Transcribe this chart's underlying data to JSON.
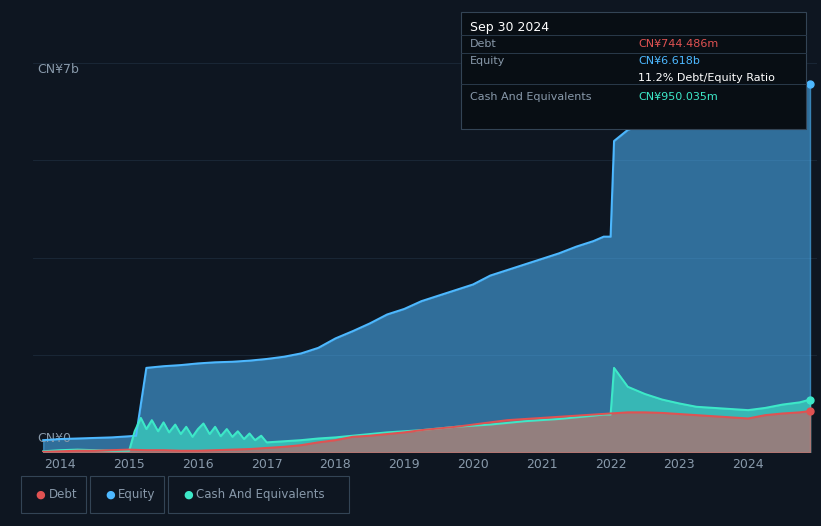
{
  "bg_color": "#0e1621",
  "plot_bg_color": "#0e1621",
  "ylabel_top": "CN¥7b",
  "ylabel_bottom": "CN¥0",
  "debt_color": "#e05252",
  "equity_color": "#4db8ff",
  "cash_color": "#3de8c8",
  "grid_color": "#1c2a3a",
  "text_color": "#8899aa",
  "box_bg": "#080e14",
  "box_border": "#2a3a4a",
  "annotation_title": "Sep 30 2024",
  "annotation_debt_label": "Debt",
  "annotation_debt_value": "CN¥744.486m",
  "annotation_equity_label": "Equity",
  "annotation_equity_value": "CN¥6.618b",
  "annotation_ratio": "11.2% Debt/Equity Ratio",
  "annotation_cash_label": "Cash And Equivalents",
  "annotation_cash_value": "CN¥950.035m",
  "xmin": 2013.6,
  "xmax": 2025.0,
  "ymin": 0.0,
  "ymax": 7.0,
  "xticks": [
    2014,
    2015,
    2016,
    2017,
    2018,
    2019,
    2020,
    2021,
    2022,
    2023,
    2024
  ],
  "equity_x": [
    2013.75,
    2014.0,
    2014.25,
    2014.5,
    2014.75,
    2015.0,
    2015.1,
    2015.25,
    2015.5,
    2015.75,
    2016.0,
    2016.25,
    2016.5,
    2016.75,
    2017.0,
    2017.25,
    2017.5,
    2017.75,
    2018.0,
    2018.25,
    2018.5,
    2018.75,
    2019.0,
    2019.25,
    2019.5,
    2019.75,
    2020.0,
    2020.25,
    2020.5,
    2020.75,
    2021.0,
    2021.25,
    2021.5,
    2021.75,
    2021.9,
    2022.0,
    2022.05,
    2022.25,
    2022.5,
    2022.75,
    2023.0,
    2023.1,
    2023.25,
    2023.5,
    2023.75,
    2024.0,
    2024.25,
    2024.5,
    2024.75,
    2024.9
  ],
  "equity_y": [
    0.22,
    0.24,
    0.25,
    0.26,
    0.27,
    0.29,
    0.3,
    1.52,
    1.55,
    1.57,
    1.6,
    1.62,
    1.63,
    1.65,
    1.68,
    1.72,
    1.78,
    1.88,
    2.05,
    2.18,
    2.32,
    2.48,
    2.58,
    2.72,
    2.82,
    2.92,
    3.02,
    3.18,
    3.28,
    3.38,
    3.48,
    3.58,
    3.7,
    3.8,
    3.88,
    3.88,
    5.6,
    5.8,
    5.92,
    6.02,
    6.12,
    6.15,
    6.22,
    6.32,
    6.4,
    6.48,
    6.53,
    6.58,
    6.618,
    6.618
  ],
  "debt_x": [
    2013.75,
    2014.0,
    2014.25,
    2014.5,
    2014.75,
    2015.0,
    2015.25,
    2015.5,
    2015.75,
    2016.0,
    2016.25,
    2016.5,
    2016.75,
    2017.0,
    2017.25,
    2017.5,
    2017.75,
    2018.0,
    2018.25,
    2018.5,
    2018.75,
    2019.0,
    2019.25,
    2019.5,
    2019.75,
    2020.0,
    2020.25,
    2020.5,
    2020.75,
    2021.0,
    2021.25,
    2021.5,
    2021.75,
    2022.0,
    2022.25,
    2022.5,
    2022.75,
    2023.0,
    2023.25,
    2023.5,
    2023.75,
    2024.0,
    2024.25,
    2024.5,
    2024.75,
    2024.9
  ],
  "debt_y": [
    0.01,
    0.02,
    0.03,
    0.03,
    0.04,
    0.05,
    0.04,
    0.04,
    0.03,
    0.03,
    0.04,
    0.05,
    0.06,
    0.08,
    0.1,
    0.13,
    0.18,
    0.22,
    0.28,
    0.3,
    0.33,
    0.36,
    0.4,
    0.43,
    0.46,
    0.5,
    0.54,
    0.58,
    0.6,
    0.62,
    0.64,
    0.66,
    0.68,
    0.7,
    0.72,
    0.72,
    0.71,
    0.69,
    0.67,
    0.65,
    0.63,
    0.61,
    0.67,
    0.7,
    0.72,
    0.7444
  ],
  "cash_x": [
    2013.75,
    2014.0,
    2014.25,
    2014.5,
    2014.75,
    2015.0,
    2015.08,
    2015.17,
    2015.25,
    2015.33,
    2015.42,
    2015.5,
    2015.58,
    2015.67,
    2015.75,
    2015.83,
    2015.92,
    2016.0,
    2016.08,
    2016.17,
    2016.25,
    2016.33,
    2016.42,
    2016.5,
    2016.58,
    2016.67,
    2016.75,
    2016.83,
    2016.92,
    2017.0,
    2017.25,
    2017.5,
    2017.75,
    2018.0,
    2018.25,
    2018.5,
    2018.75,
    2019.0,
    2019.25,
    2019.5,
    2019.75,
    2020.0,
    2020.25,
    2020.5,
    2020.75,
    2021.0,
    2021.25,
    2021.5,
    2021.75,
    2021.9,
    2022.0,
    2022.05,
    2022.25,
    2022.5,
    2022.75,
    2023.0,
    2023.25,
    2023.5,
    2023.75,
    2024.0,
    2024.25,
    2024.5,
    2024.75,
    2024.9
  ],
  "cash_y": [
    0.02,
    0.04,
    0.05,
    0.04,
    0.03,
    0.03,
    0.38,
    0.62,
    0.42,
    0.58,
    0.38,
    0.54,
    0.36,
    0.5,
    0.33,
    0.46,
    0.28,
    0.42,
    0.52,
    0.33,
    0.46,
    0.29,
    0.42,
    0.28,
    0.38,
    0.24,
    0.34,
    0.22,
    0.3,
    0.18,
    0.2,
    0.22,
    0.25,
    0.27,
    0.3,
    0.33,
    0.36,
    0.38,
    0.4,
    0.43,
    0.46,
    0.48,
    0.5,
    0.53,
    0.56,
    0.58,
    0.6,
    0.63,
    0.66,
    0.68,
    0.68,
    1.52,
    1.18,
    1.05,
    0.95,
    0.88,
    0.82,
    0.8,
    0.78,
    0.76,
    0.8,
    0.86,
    0.9,
    0.95
  ]
}
